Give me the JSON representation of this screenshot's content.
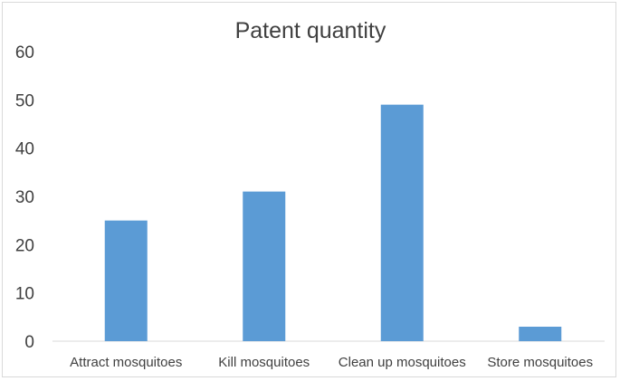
{
  "chart_data": {
    "type": "bar",
    "title": "Patent quantity",
    "categories": [
      "Attract mosquitoes",
      "Kill mosquitoes",
      "Clean up mosquitoes",
      "Store mosquitoes"
    ],
    "values": [
      25,
      31,
      49,
      3
    ],
    "xlabel": "",
    "ylabel": "",
    "ylim": [
      0,
      60
    ],
    "yticks": [
      0,
      10,
      20,
      30,
      40,
      50,
      60
    ],
    "grid": false,
    "legend": "none",
    "bar_color": "#5b9bd5"
  }
}
